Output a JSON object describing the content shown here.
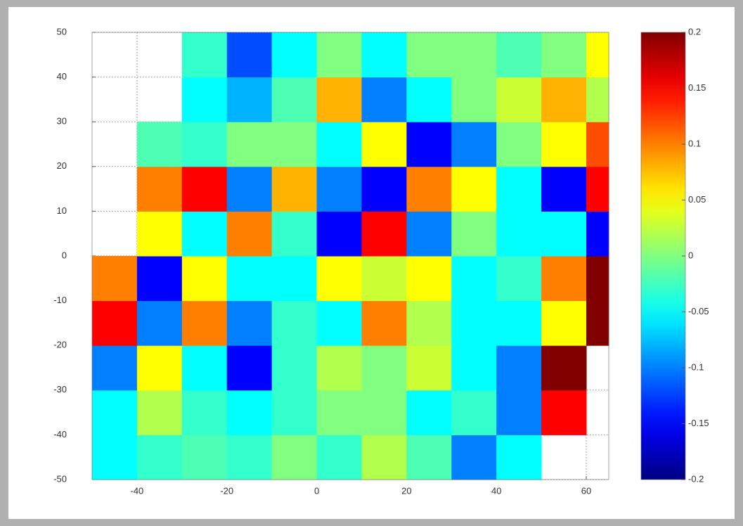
{
  "chart_data": {
    "type": "heatmap",
    "xbins": [
      -50,
      -40,
      -30,
      -20,
      -10,
      0,
      10,
      20,
      30,
      40,
      50,
      60,
      65
    ],
    "ybins": [
      -50,
      -40,
      -30,
      -20,
      -10,
      0,
      10,
      20,
      30,
      40,
      50
    ],
    "z": [
      [
        -0.05,
        -0.03,
        -0.02,
        -0.03,
        0.0,
        -0.03,
        0.02,
        -0.02,
        -0.1,
        -0.05,
        null,
        null
      ],
      [
        -0.05,
        0.02,
        -0.03,
        -0.05,
        -0.03,
        0.0,
        0.0,
        -0.05,
        -0.03,
        -0.1,
        0.15,
        null
      ],
      [
        -0.1,
        0.05,
        -0.05,
        -0.15,
        -0.03,
        0.02,
        0.0,
        0.03,
        -0.05,
        -0.1,
        0.2,
        null
      ],
      [
        0.15,
        -0.1,
        0.1,
        -0.1,
        -0.03,
        -0.05,
        0.1,
        0.02,
        -0.05,
        -0.05,
        0.05,
        0.2
      ],
      [
        0.1,
        -0.15,
        0.05,
        -0.05,
        -0.05,
        0.05,
        0.03,
        0.05,
        -0.05,
        -0.03,
        0.1,
        0.2
      ],
      [
        null,
        0.05,
        -0.05,
        0.1,
        -0.03,
        -0.15,
        0.15,
        -0.1,
        0.0,
        -0.05,
        -0.05,
        -0.15
      ],
      [
        null,
        0.1,
        0.15,
        -0.1,
        0.08,
        -0.1,
        -0.15,
        0.1,
        0.05,
        -0.05,
        -0.15,
        0.15
      ],
      [
        null,
        -0.02,
        -0.03,
        0.0,
        0.0,
        -0.05,
        0.05,
        -0.15,
        -0.1,
        0.0,
        0.05,
        0.12
      ],
      [
        null,
        null,
        -0.05,
        -0.08,
        -0.02,
        0.08,
        -0.1,
        -0.05,
        0.0,
        0.03,
        0.08,
        0.02
      ],
      [
        null,
        null,
        -0.03,
        -0.12,
        -0.05,
        0.0,
        -0.05,
        0.0,
        0.0,
        -0.02,
        0.0,
        0.05
      ]
    ],
    "xlim": [
      -50,
      65
    ],
    "xticks": [
      -40,
      -20,
      0,
      20,
      40,
      60
    ],
    "ylim": [
      -50,
      50
    ],
    "yticks": [
      -50,
      -40,
      -30,
      -20,
      -10,
      0,
      10,
      20,
      30,
      40,
      50
    ],
    "colormap": "jet",
    "clim": [
      -0.2,
      0.2
    ],
    "cticks": [
      -0.2,
      -0.15,
      -0.1,
      -0.05,
      0,
      0.05,
      0.1,
      0.15,
      0.2
    ],
    "grid": true
  }
}
